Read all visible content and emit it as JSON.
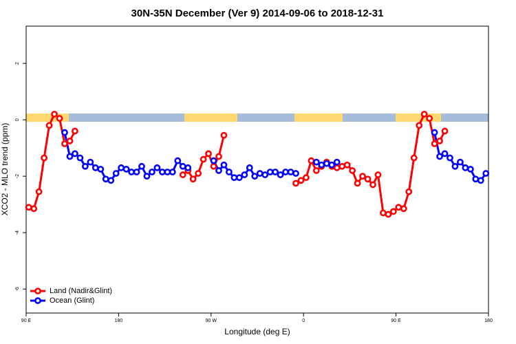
{
  "chart_data": {
    "type": "line",
    "title": "30N-35N December (Ver 9)   2014-09-06 to 2018-12-31",
    "x_label": "Longitude (deg E)",
    "y_label": "XCO2 - MLO trend (ppm)",
    "x": [
      92.5,
      97.5,
      102.5,
      107.5,
      112.5,
      117.5,
      122.5,
      127.5,
      132.5,
      137.5,
      142.5,
      147.5,
      152.5,
      157.5,
      162.5,
      167.5,
      172.5,
      177.5,
      182.5,
      187.5,
      192.5,
      197.5,
      202.5,
      207.5,
      212.5,
      217.5,
      222.5,
      227.5,
      232.5,
      237.5,
      242.5,
      247.5,
      252.5,
      257.5,
      262.5,
      267.5,
      272.5,
      277.5,
      282.5,
      287.5,
      292.5,
      297.5,
      302.5,
      307.5,
      312.5,
      317.5,
      322.5,
      327.5,
      332.5,
      337.5,
      342.5,
      347.5,
      352.5,
      357.5,
      362.5,
      367.5,
      372.5,
      377.5,
      382.5,
      387.5,
      392.5,
      397.5,
      402.5,
      407.5,
      412.5,
      417.5,
      422.5,
      427.5,
      432.5,
      437.5,
      442.5,
      447.5,
      452.5,
      457.5,
      462.5,
      467.5,
      472.5,
      477.5,
      482.5,
      487.5,
      492.5,
      497.5,
      502.5,
      507.5,
      512.5,
      517.5,
      522.5,
      527.5,
      532.5,
      537.5
    ],
    "series": [
      {
        "name": "Land (Nadir&Glint)",
        "color": "#ff0000",
        "values": [
          -3.1,
          -3.15,
          -2.55,
          -1.35,
          -0.2,
          0.2,
          0.05,
          -0.85,
          -0.75,
          -0.4,
          null,
          null,
          null,
          null,
          null,
          null,
          null,
          null,
          null,
          null,
          null,
          null,
          null,
          null,
          null,
          null,
          null,
          null,
          null,
          null,
          -1.95,
          -1.8,
          -2.1,
          -1.9,
          -1.4,
          -1.2,
          -1.65,
          -1.3,
          -0.55,
          null,
          null,
          null,
          null,
          null,
          null,
          null,
          null,
          null,
          null,
          null,
          null,
          null,
          -2.25,
          -2.15,
          -2.05,
          -1.45,
          -1.8,
          -1.65,
          -1.5,
          -1.65,
          -1.7,
          -1.65,
          -1.6,
          -1.8,
          -2.25,
          -2.0,
          -2.1,
          -2.3,
          -1.95,
          -3.3,
          -3.35,
          -3.25,
          -3.1,
          -3.15,
          -2.55,
          -1.35,
          -0.2,
          0.2,
          0.05,
          -0.85,
          -0.75,
          -0.4,
          null,
          null,
          null,
          null,
          null,
          null,
          null,
          null
        ]
      },
      {
        "name": "Ocean (Glint)",
        "color": "#0000ff",
        "values": [
          null,
          null,
          null,
          null,
          null,
          null,
          null,
          -0.45,
          -1.3,
          -1.2,
          -1.35,
          -1.65,
          -1.5,
          -1.7,
          -1.75,
          -2.1,
          -2.15,
          -1.9,
          -1.7,
          -1.75,
          -1.85,
          -1.85,
          -1.65,
          -2.0,
          -1.85,
          -1.7,
          -1.85,
          -1.85,
          -1.85,
          -1.45,
          -1.65,
          -1.7,
          null,
          null,
          null,
          null,
          -1.45,
          -1.8,
          -1.6,
          -1.85,
          -2.05,
          -2.05,
          -1.95,
          -1.7,
          -2.0,
          -1.9,
          -1.95,
          -1.85,
          -1.85,
          -1.95,
          -1.85,
          -1.85,
          -1.9,
          null,
          null,
          null,
          -1.5,
          -1.6,
          -1.55,
          -1.6,
          -1.5,
          null,
          null,
          null,
          null,
          null,
          null,
          null,
          null,
          null,
          null,
          null,
          null,
          null,
          null,
          null,
          null,
          null,
          null,
          -0.45,
          -1.3,
          -1.2,
          -1.35,
          -1.65,
          -1.5,
          -1.7,
          -1.75,
          -2.1,
          -2.15,
          -1.9
        ]
      }
    ],
    "xlim": [
      90,
      540
    ],
    "ylim": [
      -6.85,
      3.32
    ],
    "xticks": [
      {
        "value": 90,
        "label": "90 E"
      },
      180,
      {
        "value": 270,
        "label": "90 W"
      },
      {
        "value": 360,
        "label": "0"
      },
      {
        "value": 450,
        "label": "90 E"
      },
      {
        "value": 540,
        "label": "180"
      }
    ],
    "yticks": [
      -6,
      -4,
      -2,
      0,
      2
    ],
    "legend": "bottom-left"
  }
}
